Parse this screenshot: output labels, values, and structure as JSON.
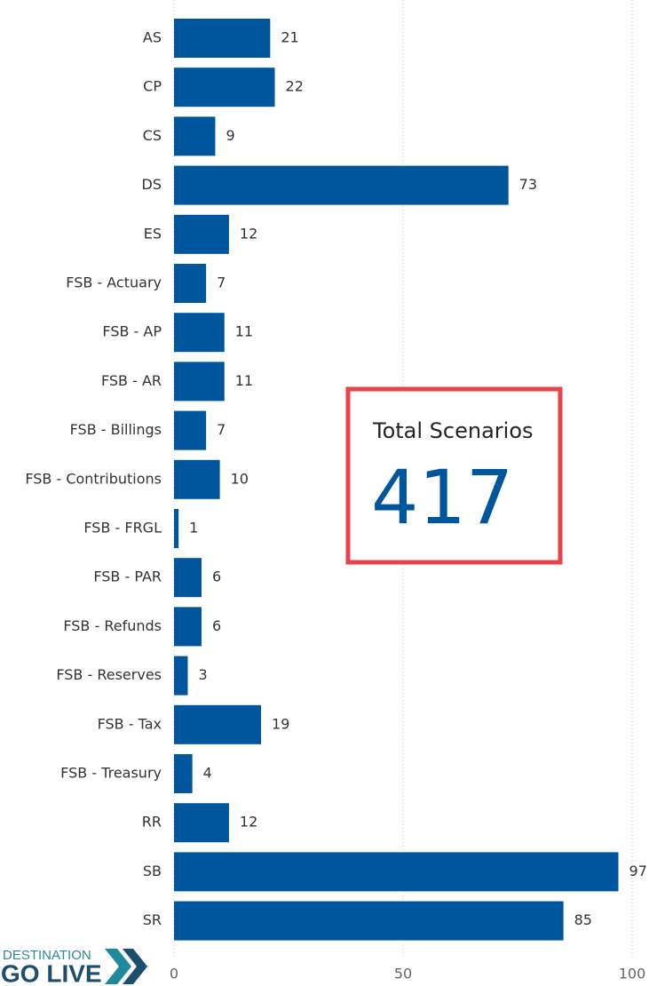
{
  "chart_data": {
    "type": "bar",
    "orientation": "horizontal",
    "categories": [
      "AS",
      "CP",
      "CS",
      "DS",
      "ES",
      "FSB - Actuary",
      "FSB - AP",
      "FSB - AR",
      "FSB - Billings",
      "FSB - Contributions",
      "FSB - FRGL",
      "FSB - PAR",
      "FSB - Refunds",
      "FSB - Reserves",
      "FSB - Tax",
      "FSB - Treasury",
      "RR",
      "SB",
      "SR"
    ],
    "values": [
      21,
      22,
      9,
      73,
      12,
      7,
      11,
      11,
      7,
      10,
      1,
      6,
      6,
      3,
      19,
      4,
      12,
      97,
      85
    ],
    "color": "#00569c",
    "xlim": [
      0,
      100
    ],
    "xticks": [
      0,
      50,
      100
    ],
    "grid": true
  },
  "card": {
    "title": "Total Scenarios",
    "value": 417
  },
  "logo": {
    "line1": "DESTINATION",
    "line2": "GO LIVE"
  }
}
